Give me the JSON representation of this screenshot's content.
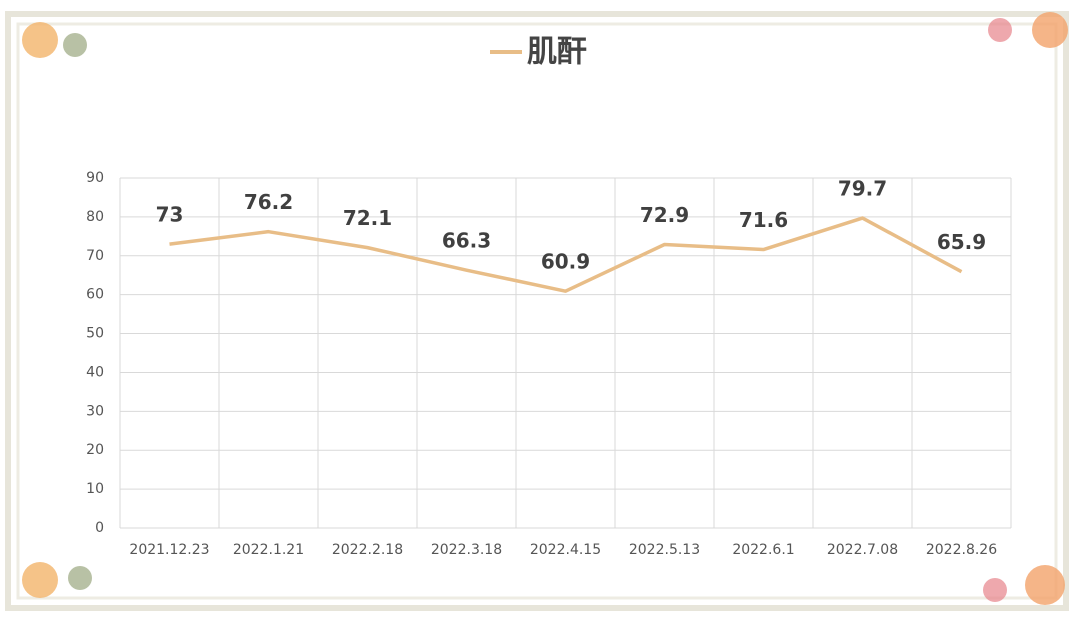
{
  "chart_data": {
    "type": "line",
    "categories": [
      "2021.12.23",
      "2022.1.21",
      "2022.2.18",
      "2022.3.18",
      "2022.4.15",
      "2022.5.13",
      "2022.6.1",
      "2022.7.08",
      "2022.8.26"
    ],
    "series": [
      {
        "name": "肌酐",
        "color": "#e8bd87",
        "values": [
          73,
          76.2,
          72.1,
          66.3,
          60.9,
          72.9,
          71.6,
          79.7,
          65.9
        ]
      }
    ],
    "ylim": [
      0,
      90
    ],
    "yticks": [
      0,
      10,
      20,
      30,
      40,
      50,
      60,
      70,
      80,
      90
    ],
    "grid": true,
    "legend": "top"
  }
}
